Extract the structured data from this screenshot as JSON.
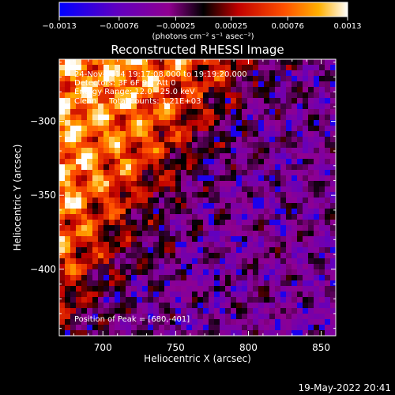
{
  "chart_data": {
    "type": "heatmap",
    "title": "Reconstructed RHESSI Image",
    "xlabel": "Heliocentric X (arcsec)",
    "ylabel": "Heliocentric Y (arcsec)",
    "xlim": [
      670,
      860
    ],
    "ylim": [
      -445,
      -258
    ],
    "x_ticks": [
      700,
      750,
      800,
      850
    ],
    "y_ticks": [
      -300,
      -350,
      -400
    ],
    "x_tick_labels": [
      "700",
      "750",
      "800",
      "850"
    ],
    "y_tick_labels": [
      "−300",
      "−350",
      "−400"
    ],
    "colorbar": {
      "range": [
        -0.0013,
        0.0013
      ],
      "tick_values": [
        -0.0013,
        -0.00076,
        -0.00025,
        0.00025,
        0.00076,
        0.0013
      ],
      "tick_labels": [
        "−0.0013",
        "−0.00076",
        "−0.00025",
        "0.00025",
        "0.00076",
        "0.0013"
      ],
      "unit_label": "(photons cm⁻² s⁻¹ asec⁻²)",
      "colors": [
        "#0000ff",
        "#6000c0",
        "#900090",
        "#000000",
        "#c00000",
        "#ff5000",
        "#ffb000",
        "#ffffff"
      ]
    },
    "peak": {
      "x": 680,
      "y": -401
    },
    "annotations": [
      "24-Nov-2014 19:17:08.000 to 19:19:20.000",
      "Detectors: 3F 6F 9F, Att 0",
      "Energy Range: 12.0 - 25.0 keV",
      "Clean     Total counts: 1.21E+03",
      "Position of Peak = [680,-401]"
    ]
  },
  "footer": {
    "timestamp": "19-May-2022 20:41"
  }
}
